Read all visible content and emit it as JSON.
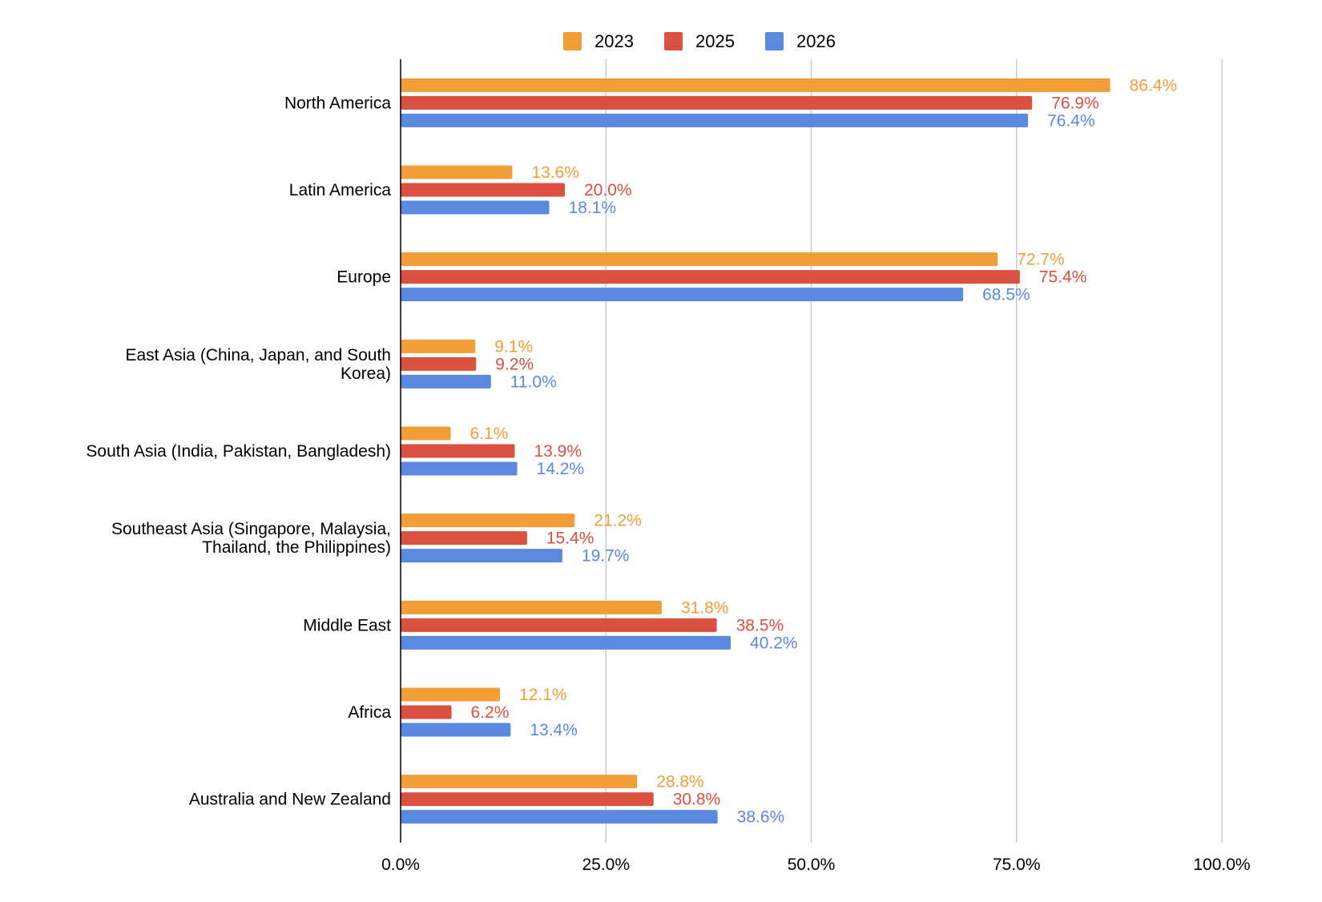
{
  "chart_data": {
    "type": "bar",
    "orientation": "horizontal",
    "title": "",
    "xlabel": "",
    "ylabel": "",
    "xlim": [
      0,
      100
    ],
    "x_ticks": [
      "0.0%",
      "25.0%",
      "50.0%",
      "75.0%",
      "100.0%"
    ],
    "x_tick_values": [
      0,
      25,
      50,
      75,
      100
    ],
    "grid": true,
    "legend_position": "top-center",
    "categories": [
      [
        "North America"
      ],
      [
        "Latin America"
      ],
      [
        "Europe"
      ],
      [
        "East Asia (China, Japan, and South",
        "Korea)"
      ],
      [
        "South Asia (India, Pakistan, Bangladesh)"
      ],
      [
        "Southeast Asia (Singapore, Malaysia,",
        "Thailand, the Philippines)"
      ],
      [
        "Middle East"
      ],
      [
        "Africa"
      ],
      [
        "Australia and New Zealand"
      ]
    ],
    "series": [
      {
        "name": "2023",
        "color": "#f29e38",
        "values": [
          86.4,
          13.6,
          72.7,
          9.1,
          6.1,
          21.2,
          31.8,
          12.1,
          28.8
        ],
        "labels": [
          "86.4%",
          "13.6%",
          "72.7%",
          "9.1%",
          "6.1%",
          "21.2%",
          "31.8%",
          "12.1%",
          "28.8%"
        ]
      },
      {
        "name": "2025",
        "color": "#db5040",
        "values": [
          76.9,
          20.0,
          75.4,
          9.2,
          13.9,
          15.4,
          38.5,
          6.2,
          30.8
        ],
        "labels": [
          "76.9%",
          "20.0%",
          "75.4%",
          "9.2%",
          "13.9%",
          "15.4%",
          "38.5%",
          "6.2%",
          "30.8%"
        ]
      },
      {
        "name": "2026",
        "color": "#5b89e0",
        "values": [
          76.4,
          18.1,
          68.5,
          11.0,
          14.2,
          19.7,
          40.2,
          13.4,
          38.6
        ],
        "labels": [
          "76.4%",
          "18.1%",
          "68.5%",
          "11.0%",
          "14.2%",
          "19.7%",
          "40.2%",
          "13.4%",
          "38.6%"
        ]
      }
    ]
  }
}
